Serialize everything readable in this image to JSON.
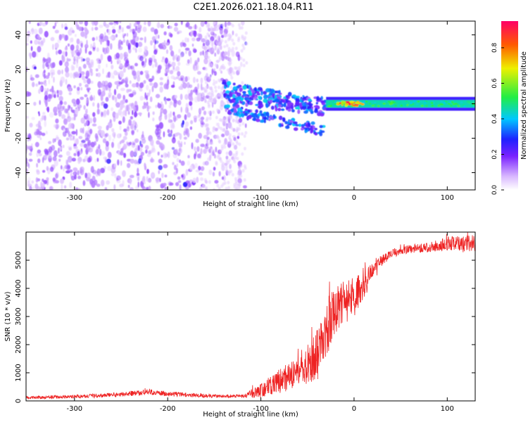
{
  "figure": {
    "title": "C2E1.2026.021.18.04.R11"
  },
  "colors": {
    "snr_line": "#ee2222",
    "colormap": [
      "#ffffff",
      "#e6d2ff",
      "#9a4cff",
      "#6a1bff",
      "#2a22ff",
      "#00c8ff",
      "#22ee66",
      "#ffee00",
      "#ff5500",
      "#ff0066"
    ]
  },
  "chart_data": [
    {
      "type": "heatmap",
      "title": "C2E1.2026.021.18.04.R11",
      "xlabel": "Height of straight line (km)",
      "ylabel": "Frequency (Hz)",
      "xlim": [
        -352,
        130
      ],
      "ylim": [
        -50,
        48
      ],
      "xticks": [
        -300,
        -200,
        -100,
        0,
        100
      ],
      "xtick_labels": [
        "-300",
        "-200",
        "-100",
        "0",
        "100"
      ],
      "yticks": [
        -40,
        -20,
        0,
        20,
        40
      ],
      "ytick_labels": [
        "-40",
        "-20",
        "0",
        "20",
        "40"
      ],
      "colorbar": {
        "label": "Normalized spectral amplitude",
        "range": [
          0,
          0.95
        ],
        "ticks": [
          0,
          0.2,
          0.4,
          0.6,
          0.8
        ],
        "tick_labels": [
          "0.0",
          "0.2",
          "0.4",
          "0.6",
          "0.8"
        ]
      },
      "regions": [
        {
          "name": "broadband noise",
          "x_range": [
            -352,
            -115
          ],
          "freq_range": [
            -50,
            48
          ],
          "amplitude": 0.15
        },
        {
          "name": "converging signal",
          "x_range": [
            -140,
            -30
          ],
          "freq_range": [
            -22,
            12
          ],
          "amplitude": 0.35
        },
        {
          "name": "stable carrier",
          "x_range": [
            -30,
            130
          ],
          "center_freq": 0,
          "amplitude": 0.45
        },
        {
          "name": "peak",
          "x_range": [
            -20,
            10
          ],
          "center_freq": 0,
          "amplitude": 0.95
        }
      ]
    },
    {
      "type": "line",
      "title": "",
      "xlabel": "Height of straight line (km)",
      "ylabel": "SNR (10 * v/v)",
      "xlim": [
        -352,
        130
      ],
      "ylim": [
        0,
        6000
      ],
      "xticks": [
        -300,
        -200,
        -100,
        0,
        100
      ],
      "xtick_labels": [
        "-300",
        "-200",
        "-100",
        "0",
        "100"
      ],
      "yticks": [
        0,
        1000,
        2000,
        3000,
        4000,
        5000
      ],
      "ytick_labels": [
        "0",
        "1000",
        "2000",
        "3000",
        "4000",
        "5000"
      ],
      "series": [
        {
          "name": "SNR",
          "x": [
            -352,
            -300,
            -250,
            -220,
            -200,
            -150,
            -120,
            -100,
            -80,
            -60,
            -50,
            -40,
            -30,
            -20,
            -10,
            0,
            10,
            20,
            30,
            40,
            60,
            80,
            100,
            130
          ],
          "y": [
            120,
            150,
            230,
            320,
            250,
            170,
            170,
            350,
            700,
            1000,
            1200,
            1600,
            2500,
            3200,
            3500,
            3700,
            4100,
            4600,
            5000,
            5250,
            5400,
            5450,
            5600,
            5600
          ],
          "noise": [
            60,
            60,
            80,
            100,
            90,
            60,
            60,
            250,
            450,
            550,
            650,
            900,
            1100,
            900,
            800,
            700,
            600,
            300,
            200,
            150,
            150,
            170,
            250,
            300
          ]
        }
      ]
    }
  ]
}
